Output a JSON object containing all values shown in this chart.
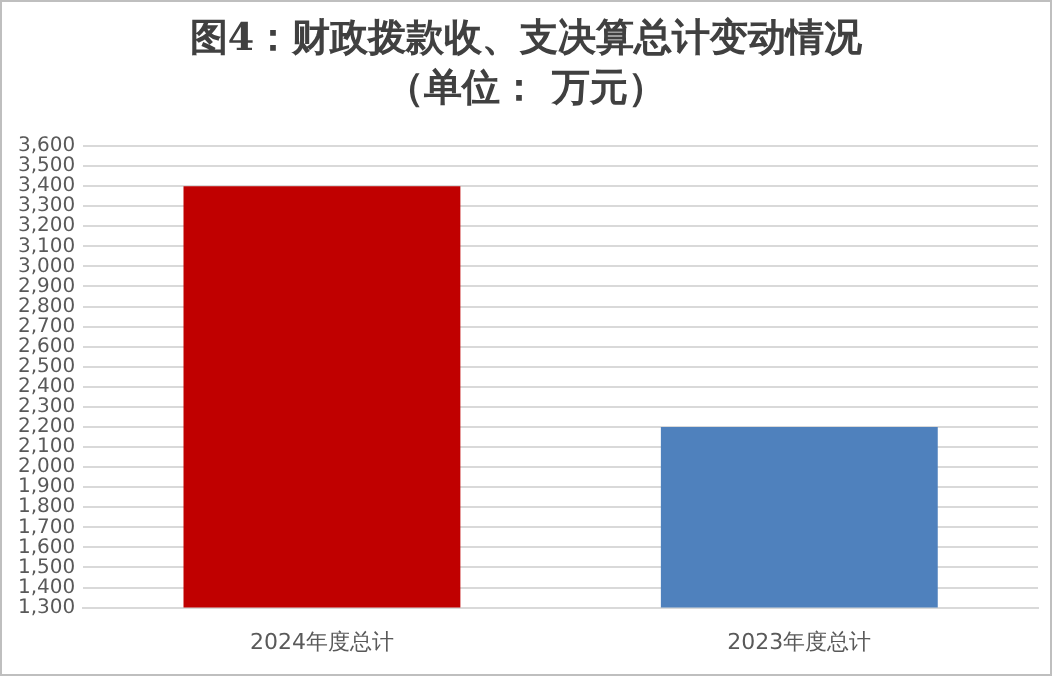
{
  "chart_data": {
    "type": "bar",
    "title": "图4：财政拨款收、支决算总计变动情况",
    "subtitle": "（单位：  万元）",
    "categories": [
      "2024年度总计",
      "2023年度总计"
    ],
    "values": [
      3400,
      2200
    ],
    "colors": [
      "#c00000",
      "#4f81bd"
    ],
    "ylim": [
      1300,
      3600
    ],
    "yticks": [
      {
        "value": 1300,
        "label": "1,300"
      },
      {
        "value": 1400,
        "label": "1,400"
      },
      {
        "value": 1500,
        "label": "1,500"
      },
      {
        "value": 1600,
        "label": "1,600"
      },
      {
        "value": 1700,
        "label": "1,700"
      },
      {
        "value": 1800,
        "label": "1,800"
      },
      {
        "value": 1900,
        "label": "1,900"
      },
      {
        "value": 2000,
        "label": "2,000"
      },
      {
        "value": 2100,
        "label": "2,100"
      },
      {
        "value": 2200,
        "label": "2,200"
      },
      {
        "value": 2300,
        "label": "2,300"
      },
      {
        "value": 2400,
        "label": "2,400"
      },
      {
        "value": 2500,
        "label": "2,500"
      },
      {
        "value": 2600,
        "label": "2,600"
      },
      {
        "value": 2700,
        "label": "2,700"
      },
      {
        "value": 2800,
        "label": "2,800"
      },
      {
        "value": 2900,
        "label": "2,900"
      },
      {
        "value": 3000,
        "label": "3,000"
      },
      {
        "value": 3100,
        "label": "3,100"
      },
      {
        "value": 3200,
        "label": "3,200"
      },
      {
        "value": 3300,
        "label": "3,300"
      },
      {
        "value": 3400,
        "label": "3,400"
      },
      {
        "value": 3500,
        "label": "3,500"
      },
      {
        "value": 3600,
        "label": "3,600"
      }
    ],
    "grid": "y",
    "legend": false
  }
}
